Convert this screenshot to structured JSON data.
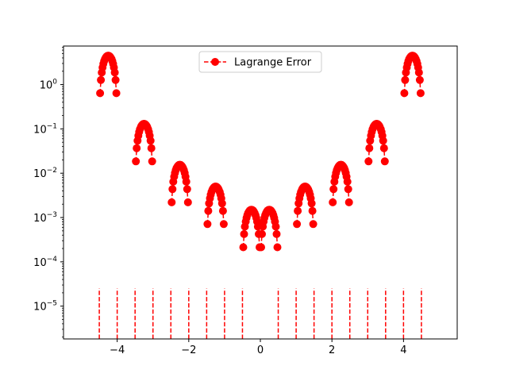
{
  "chart_data": {
    "type": "line",
    "title": "",
    "xlabel": "",
    "ylabel": "",
    "xlim": [
      -5.5,
      5.5
    ],
    "ylim_log10": [
      -5.74,
      0.87
    ],
    "yscale": "log",
    "grid": false,
    "legend_position": "top-center",
    "x_ticks": [
      -4,
      -2,
      0,
      2,
      4
    ],
    "x_tick_labels": [
      "−4",
      "−2",
      "0",
      "2",
      "4"
    ],
    "y_ticks_exp": [
      -5,
      -4,
      -3,
      -2,
      -1,
      0
    ],
    "series": [
      {
        "name": "Lagrange Error",
        "color": "#ff0000",
        "line_style": "dashed",
        "marker": "circle",
        "nodes": [
          -4.5,
          -4.0,
          -3.5,
          -3.0,
          -2.5,
          -2.0,
          -1.5,
          -1.0,
          -0.5,
          0.5,
          1.0,
          1.5,
          2.0,
          2.5,
          3.0,
          3.5,
          4.0,
          4.5
        ],
        "lobes": [
          {
            "x_start": -4.5,
            "x_end": -4.0,
            "peak": 4.5
          },
          {
            "x_start": -3.5,
            "x_end": -3.0,
            "peak": 0.13
          },
          {
            "x_start": -2.5,
            "x_end": -2.0,
            "peak": 0.0155
          },
          {
            "x_start": -1.5,
            "x_end": -1.0,
            "peak": 0.005
          },
          {
            "x_start": -0.5,
            "x_end": 0.0,
            "peak": 0.0015
          },
          {
            "x_start": 0.0,
            "x_end": 0.5,
            "peak": 0.0015
          },
          {
            "x_start": 1.0,
            "x_end": 1.5,
            "peak": 0.005
          },
          {
            "x_start": 2.0,
            "x_end": 2.5,
            "peak": 0.0155
          },
          {
            "x_start": 3.0,
            "x_end": 3.5,
            "peak": 0.13
          },
          {
            "x_start": 4.0,
            "x_end": 4.5,
            "peak": 4.5
          }
        ]
      }
    ]
  }
}
